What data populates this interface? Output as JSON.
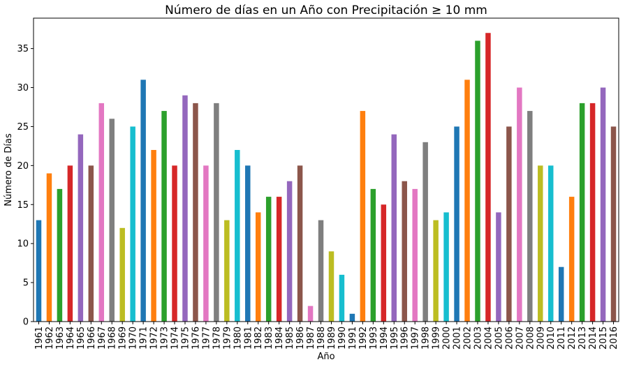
{
  "chart_data": {
    "type": "bar",
    "title": "Número de días en un Año con Precipitación ≥ 10 mm",
    "xlabel": "Año",
    "ylabel": "Número de Días",
    "ylim": [
      0,
      38.9
    ],
    "yticks": [
      0,
      5,
      10,
      15,
      20,
      25,
      30,
      35
    ],
    "grid": false,
    "legend": "none",
    "categories": [
      "1961",
      "1962",
      "1963",
      "1964",
      "1965",
      "1966",
      "1967",
      "1968",
      "1969",
      "1970",
      "1971",
      "1972",
      "1973",
      "1974",
      "1975",
      "1976",
      "1977",
      "1978",
      "1979",
      "1980",
      "1981",
      "1982",
      "1983",
      "1984",
      "1985",
      "1986",
      "1987",
      "1988",
      "1989",
      "1990",
      "1991",
      "1992",
      "1993",
      "1994",
      "1995",
      "1996",
      "1997",
      "1998",
      "1999",
      "2000",
      "2001",
      "2002",
      "2003",
      "2004",
      "2005",
      "2006",
      "2007",
      "2008",
      "2009",
      "2010",
      "2011",
      "2012",
      "2013",
      "2014",
      "2015",
      "2016"
    ],
    "values": [
      13,
      19,
      17,
      20,
      24,
      20,
      28,
      26,
      12,
      25,
      31,
      22,
      27,
      20,
      29,
      28,
      20,
      28,
      13,
      22,
      20,
      14,
      16,
      16,
      18,
      20,
      2,
      13,
      9,
      6,
      1,
      27,
      17,
      15,
      24,
      18,
      17,
      23,
      13,
      14,
      25,
      31,
      36,
      37,
      14,
      25,
      30,
      27,
      20,
      20,
      7,
      16,
      28,
      28,
      30,
      25
    ],
    "colors": [
      "#1f77b4",
      "#ff7f0e",
      "#2ca02c",
      "#d62728",
      "#9467bd",
      "#8c564b",
      "#e377c2",
      "#7f7f7f",
      "#bcbd22",
      "#17becf"
    ]
  }
}
